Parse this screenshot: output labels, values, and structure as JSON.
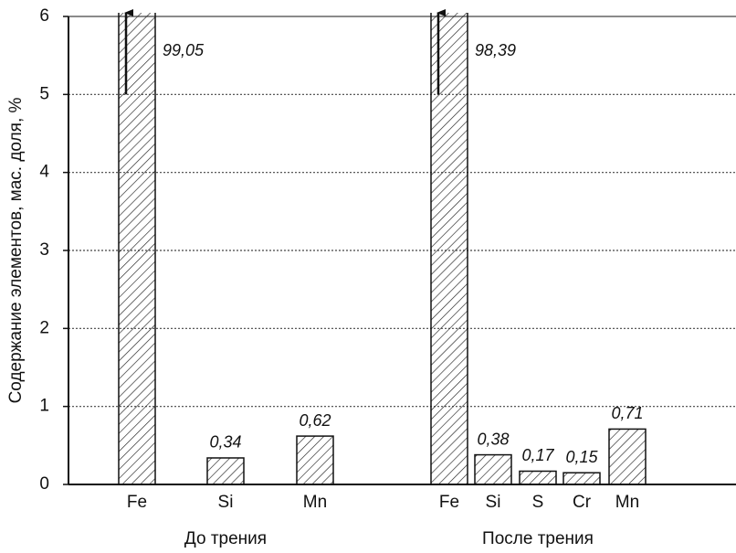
{
  "chart_data": {
    "type": "bar",
    "y_label": "Содержание элементов, мас. доля, %",
    "ylim": [
      0,
      6
    ],
    "yticks": [
      0,
      1,
      2,
      3,
      4,
      5,
      6
    ],
    "grid": true,
    "groups": [
      {
        "name": "До трения",
        "categories": [
          "Fe",
          "Si",
          "Mn"
        ],
        "values": [
          99.05,
          0.34,
          0.62
        ],
        "value_labels": [
          "99,05",
          "0,34",
          "0,62"
        ]
      },
      {
        "name": "После трения",
        "categories": [
          "Fe",
          "Si",
          "S",
          "Cr",
          "Mn"
        ],
        "values": [
          98.39,
          0.38,
          0.17,
          0.15,
          0.71
        ],
        "value_labels": [
          "98,39",
          "0,38",
          "0,17",
          "0,15",
          "0,71"
        ]
      }
    ]
  }
}
